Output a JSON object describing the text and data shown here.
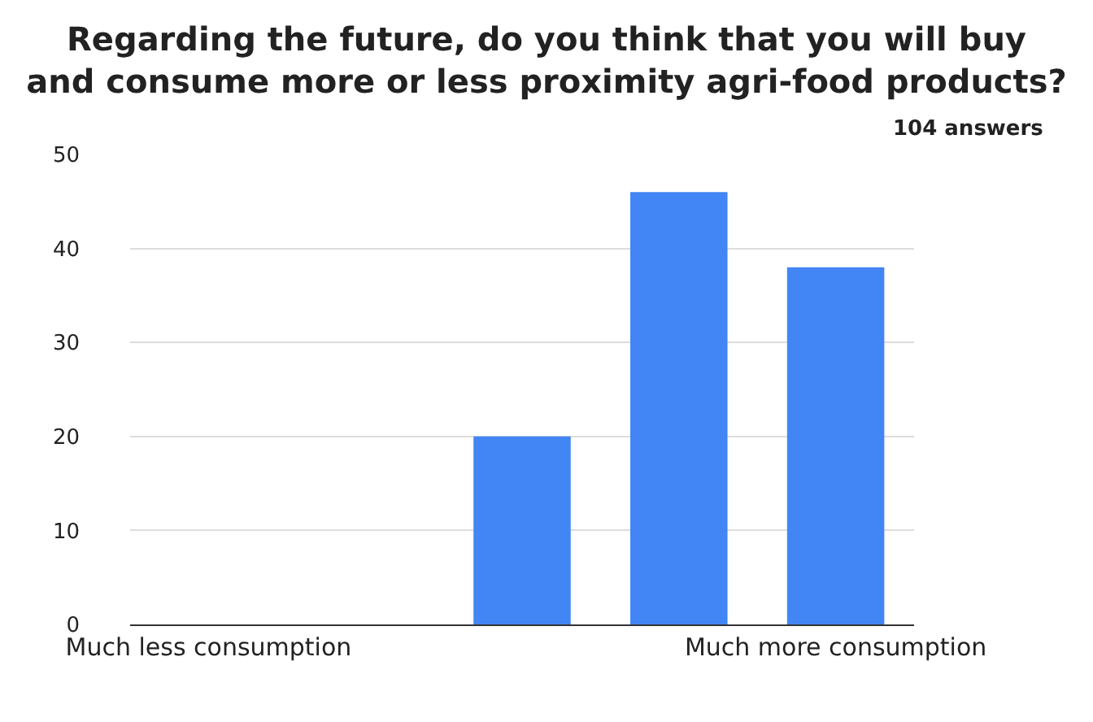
{
  "chart_data": {
    "type": "bar",
    "title": "Regarding the future, do you think that you will buy\nand consume more or less proximity agri-food products?",
    "categories": [
      "Much less consumption",
      null,
      null,
      null,
      "Much more consumption"
    ],
    "values": [
      0,
      0,
      20,
      46,
      38
    ],
    "color": "#4285f4",
    "ylim": [
      0,
      50
    ],
    "yticks": [
      0,
      10,
      20,
      30,
      40,
      50
    ],
    "grid": "y",
    "annotations": [
      "104 answers"
    ]
  }
}
